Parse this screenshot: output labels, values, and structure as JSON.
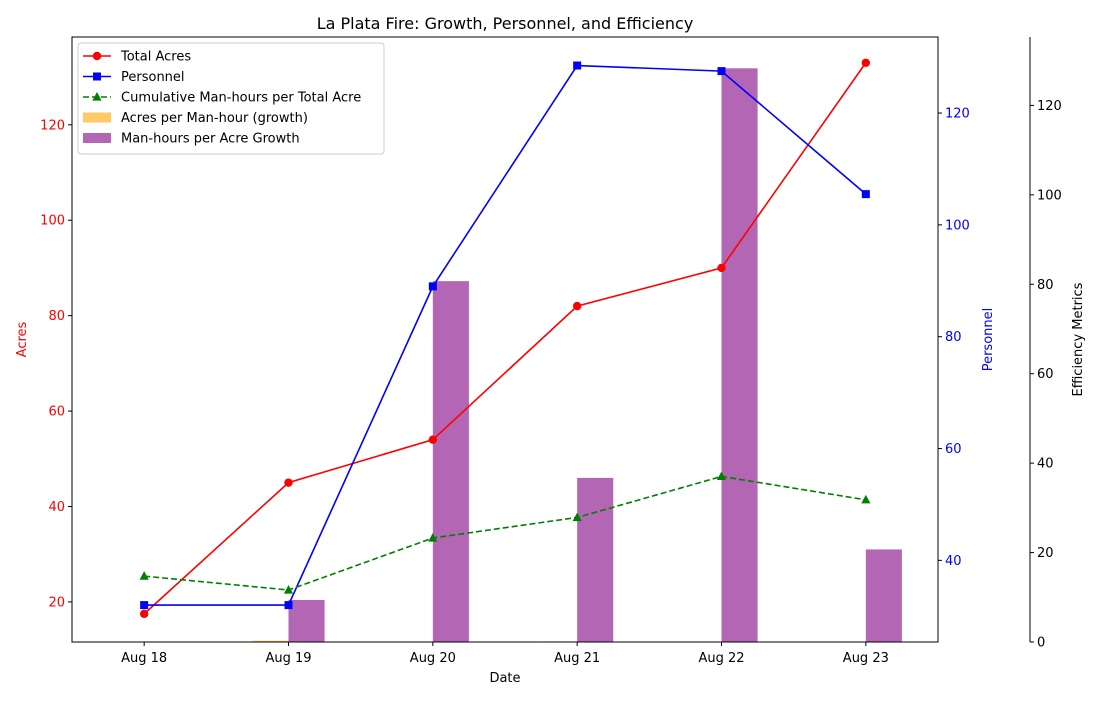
{
  "chart_data": {
    "type": "line",
    "title": "La Plata Fire: Growth, Personnel, and Efficiency",
    "xlabel": "Date",
    "categories": [
      "Aug 18",
      "Aug 19",
      "Aug 20",
      "Aug 21",
      "Aug 22",
      "Aug 23"
    ],
    "axes": {
      "left": {
        "label": "Acres",
        "color": "#ff0000",
        "ylim": [
          11.6,
          138.4
        ],
        "ticks": [
          20,
          40,
          60,
          80,
          100,
          120
        ]
      },
      "right": {
        "label": "Personnel",
        "color": "#0000ff",
        "ylim": [
          25.4,
          133.6
        ],
        "ticks": [
          40,
          60,
          80,
          100,
          120
        ]
      },
      "right2": {
        "label": "Efficiency Metrics",
        "color": "#000000",
        "ylim": [
          0,
          135.3
        ],
        "ticks": [
          0,
          20,
          40,
          60,
          80,
          100,
          120
        ]
      }
    },
    "series": [
      {
        "name": "Total Acres",
        "axis": "left",
        "kind": "line",
        "color": "#ff0000",
        "marker": "circle",
        "dash": "solid",
        "values": [
          17.5,
          45,
          54,
          82,
          90,
          133
        ]
      },
      {
        "name": "Personnel",
        "axis": "right",
        "kind": "line",
        "color": "#0000ff",
        "marker": "square",
        "dash": "solid",
        "values": [
          32,
          32,
          89,
          128.5,
          127.5,
          105.5
        ]
      },
      {
        "name": "Cumulative Man-hours per Total Acre",
        "axis": "left",
        "kind": "line",
        "color": "#008000",
        "marker": "triangle",
        "dash": "dashed",
        "values": [
          25.4,
          22.5,
          33.4,
          37.7,
          46.3,
          41.4
        ]
      },
      {
        "name": "Acres per Man-hour (growth)",
        "axis": "right2",
        "kind": "bar",
        "color": "#ffa500",
        "opacity": 0.6,
        "offset": -0.125,
        "values": [
          0,
          0.3,
          0.05,
          0.12,
          0.03,
          0.08
        ]
      },
      {
        "name": "Man-hours per Acre Growth",
        "axis": "right2",
        "kind": "bar",
        "color": "#800080",
        "opacity": 0.6,
        "offset": 0.125,
        "values": [
          0,
          9.4,
          80.7,
          36.7,
          128.3,
          20.7
        ]
      }
    ],
    "legend": "top-left"
  }
}
